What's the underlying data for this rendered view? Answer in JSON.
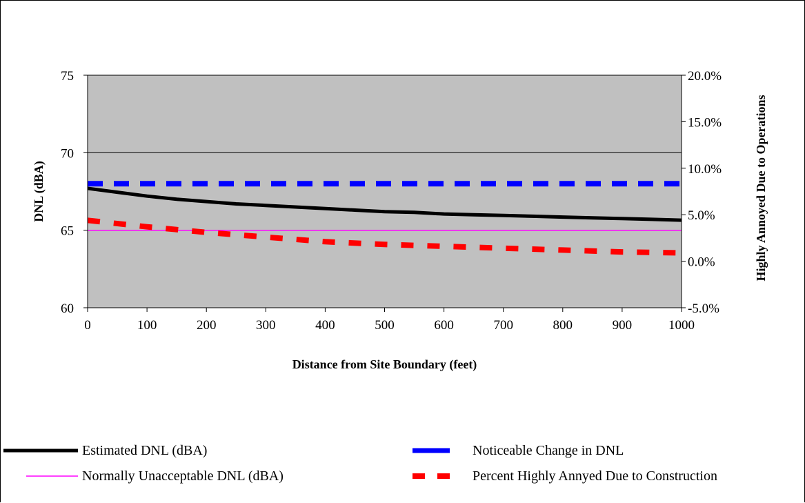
{
  "chart_data": {
    "type": "line",
    "xlabel": "Distance from Site Boundary (feet)",
    "ylabel": "DNL (dBA)",
    "y2label": "Highly Annoyed Due to Operations",
    "xlim": [
      0,
      1000
    ],
    "ylim": [
      60,
      75
    ],
    "y2lim": [
      -0.05,
      0.2
    ],
    "x_ticks": [
      "0",
      "100",
      "200",
      "300",
      "400",
      "500",
      "600",
      "700",
      "800",
      "900",
      "1000"
    ],
    "x_tick_values": [
      0,
      100,
      200,
      300,
      400,
      500,
      600,
      700,
      800,
      900,
      1000
    ],
    "y_ticks": [
      "60",
      "65",
      "70",
      "75"
    ],
    "y_tick_values": [
      60,
      65,
      70,
      75
    ],
    "y2_ticks": [
      "-5.0%",
      "0.0%",
      "5.0%",
      "10.0%",
      "15.0%",
      "20.0%"
    ],
    "y2_tick_values": [
      -0.05,
      0.0,
      0.05,
      0.1,
      0.15,
      0.2
    ],
    "grid": "horizontal major lines on left axis",
    "plot_background": "#c0c0c0",
    "legend_position": "bottom",
    "series": [
      {
        "name": "Estimated DNL (dBA)",
        "axis": "left",
        "color": "#000000",
        "style": "solid-thick",
        "x": [
          0,
          50,
          100,
          150,
          200,
          250,
          300,
          350,
          400,
          450,
          500,
          550,
          600,
          650,
          700,
          750,
          800,
          850,
          900,
          950,
          1000
        ],
        "values": [
          67.7,
          67.45,
          67.2,
          67.0,
          66.85,
          66.7,
          66.6,
          66.5,
          66.4,
          66.3,
          66.2,
          66.15,
          66.05,
          66.0,
          65.95,
          65.9,
          65.85,
          65.8,
          65.75,
          65.7,
          65.65
        ]
      },
      {
        "name": "Noticeable Change in DNL",
        "axis": "left",
        "color": "#0000ff",
        "style": "dashed-thick",
        "x": [
          0,
          1000
        ],
        "values": [
          68.0,
          68.0
        ]
      },
      {
        "name": "Normally Unacceptable DNL (dBA)",
        "axis": "left",
        "color": "#ff00ff",
        "style": "solid-thin",
        "x": [
          0,
          1000
        ],
        "values": [
          65.0,
          65.0
        ]
      },
      {
        "name": "Percent Highly Annyed Due to Construction",
        "axis": "right",
        "color": "#ff0000",
        "style": "dashed-thick",
        "x": [
          0,
          100,
          200,
          300,
          400,
          500,
          600,
          700,
          800,
          900,
          1000
        ],
        "values": [
          0.044,
          0.037,
          0.031,
          0.026,
          0.021,
          0.018,
          0.016,
          0.014,
          0.012,
          0.01,
          0.009
        ]
      }
    ]
  }
}
